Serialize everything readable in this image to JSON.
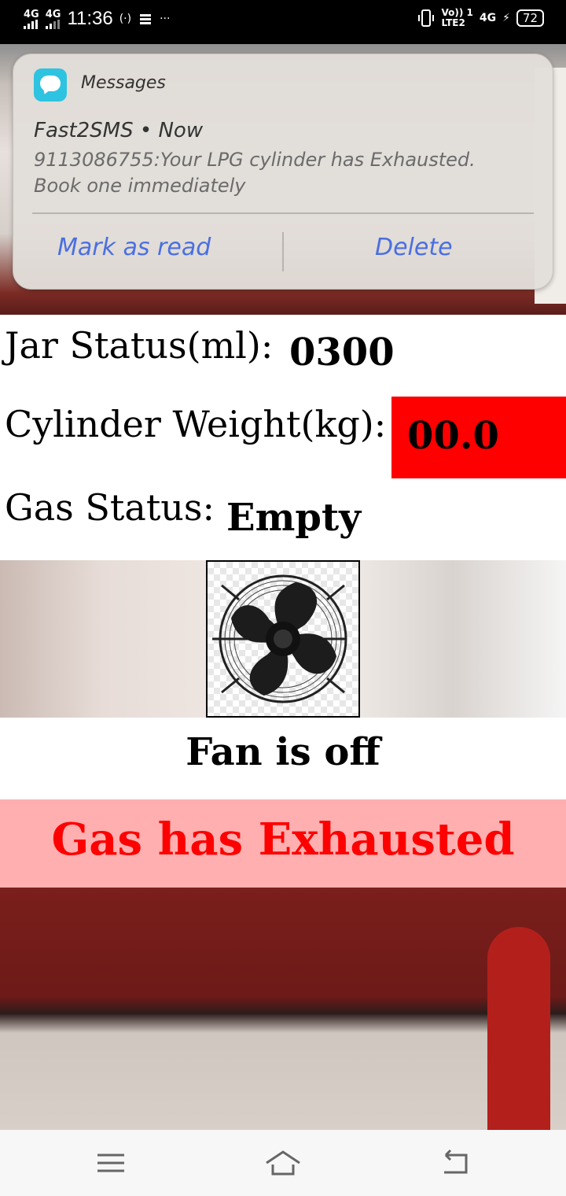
{
  "status_bar": {
    "sim1": "4G",
    "sim2": "4G",
    "time": "11:36",
    "more": "···",
    "volte": "Vo)) 1",
    "lte": "LTE2",
    "net": "4G",
    "battery": "72"
  },
  "notification": {
    "app_name": "Messages",
    "sender": "Fast2SMS • Now",
    "body": "9113086755:Your LPG cylinder has Exhausted. Book one immediately",
    "actions": {
      "mark_read": "Mark as read",
      "delete": "Delete"
    }
  },
  "jar": {
    "label": "Jar Status(ml):",
    "value": "0300"
  },
  "cylinder": {
    "label": "Cylinder Weight(kg):",
    "value": "00.0",
    "highlight_color": "#ff0000"
  },
  "gas": {
    "label": "Gas Status:",
    "value": "Empty"
  },
  "fan": {
    "status": "Fan is off"
  },
  "alert": {
    "message": "Gas has Exhausted",
    "bg_color": "#ffafb0",
    "text_color": "#ff0000"
  },
  "icons": [
    "signal-icon",
    "wifi-hotspot-icon",
    "storage-icon",
    "vibrate-icon",
    "battery-icon",
    "messages-app-icon",
    "fan-icon",
    "menu-icon",
    "home-icon",
    "back-icon"
  ]
}
